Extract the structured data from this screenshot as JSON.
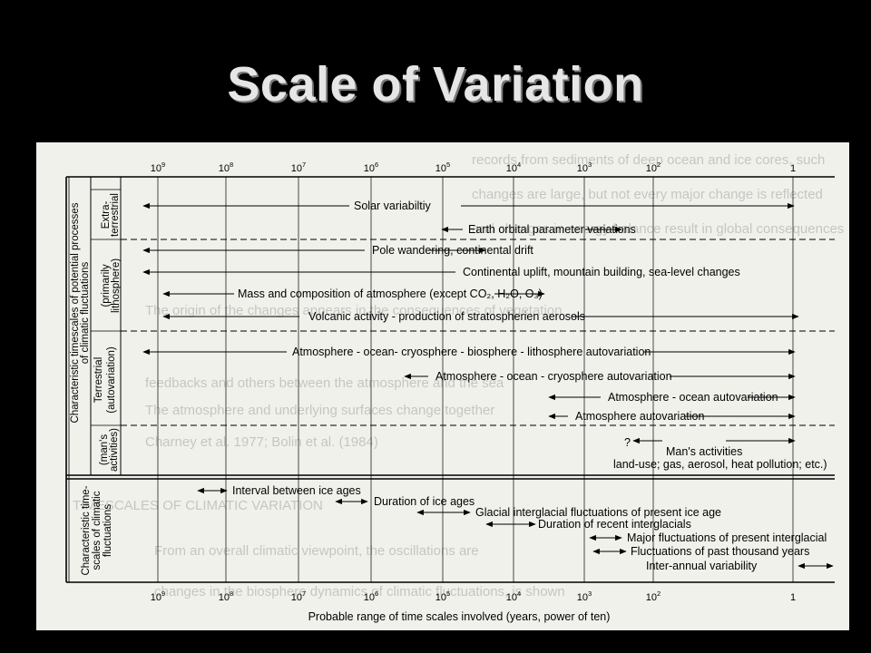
{
  "slide_title": "Scale of Variation",
  "figure": {
    "scale_exponents": [
      "9",
      "8",
      "7",
      "6",
      "5",
      "4",
      "3",
      "2",
      "1"
    ],
    "scale_base": "10",
    "scale_last": "1",
    "x_axis_label": "Probable range of time scales involved (years, power of ten)",
    "side_title_outer_top": {
      "line1": "Characteristic timescales of potential processes",
      "line2": "of climatic fluctuations"
    },
    "side_title_outer_bottom": {
      "line1": "Characteristic time-",
      "line2": "scales of climatic",
      "line3": "fluctuations"
    },
    "group_terrestrial": "Terrestrial",
    "group_extra": {
      "line1": "Extra-",
      "line2": "terrestrial"
    },
    "group_lith": {
      "line1": "(primarily",
      "line2": "lithosphere)"
    },
    "group_auto": "(autovariation)",
    "group_man": {
      "line1": "(man's",
      "line2": "activities)"
    },
    "processes": [
      "Solar variabiltiy",
      "Earth orbital parameter variations",
      "Pole wandering, continental drift",
      "Continental uplift, mountain building, sea-level changes",
      "Mass and composition of atmosphere (except CO₂, H₂O, O₃)",
      "Volcanic activity - production of stratospherien aerosols",
      "Atmosphere - ocean- cryosphere - biosphere - lithosphere autovariation",
      "Atmosphere - ocean - cryosphere autovariation",
      "Atmosphere - ocean autovariation",
      "Atmosphere autovariation"
    ],
    "man_question": "?",
    "man_line1": "Man's activities",
    "man_line2": "land-use; gas, aerosol, heat pollution; etc.)",
    "fluctuations": [
      "Interval between ice ages",
      "Duration of ice ages",
      "Glacial interglacial fluctuations of present ice age",
      "Duration of recent interglacials",
      "Major fluctuations of present interglacial",
      "Fluctuations of past thousand years",
      "Inter-annual variability"
    ]
  }
}
